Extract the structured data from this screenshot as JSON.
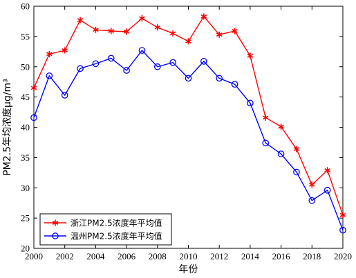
{
  "chart_data": {
    "type": "line",
    "xlabel": "年份",
    "ylabel": "PM2.5年均浓度μg/m³",
    "xlim": [
      2000,
      2020
    ],
    "ylim": [
      20,
      60
    ],
    "xticks": [
      2000,
      2002,
      2004,
      2006,
      2008,
      2010,
      2012,
      2014,
      2016,
      2018,
      2020
    ],
    "yticks": [
      20,
      25,
      30,
      35,
      40,
      45,
      50,
      55,
      60
    ],
    "x": [
      2000,
      2001,
      2002,
      2003,
      2004,
      2005,
      2006,
      2007,
      2008,
      2009,
      2010,
      2011,
      2012,
      2013,
      2014,
      2015,
      2016,
      2017,
      2018,
      2019,
      2020
    ],
    "grid": false,
    "legend_position": "bottom-left",
    "series": [
      {
        "name": "浙江PM2.5浓度年平均值",
        "color": "#ff0000",
        "marker": "star",
        "values": [
          46.5,
          52.1,
          52.7,
          57.7,
          56.1,
          55.9,
          55.8,
          58.0,
          56.5,
          55.5,
          54.2,
          58.3,
          55.3,
          55.9,
          51.8,
          41.6,
          40.1,
          36.4,
          30.5,
          32.9,
          25.5
        ]
      },
      {
        "name": "温州PM2.5浓度年平均值",
        "color": "#0000ff",
        "marker": "circle",
        "values": [
          41.6,
          48.5,
          45.3,
          49.7,
          50.5,
          51.4,
          49.4,
          52.7,
          50.0,
          50.7,
          48.1,
          50.9,
          48.1,
          47.1,
          44.0,
          37.4,
          35.6,
          32.6,
          27.9,
          29.6,
          23.0
        ]
      }
    ]
  }
}
